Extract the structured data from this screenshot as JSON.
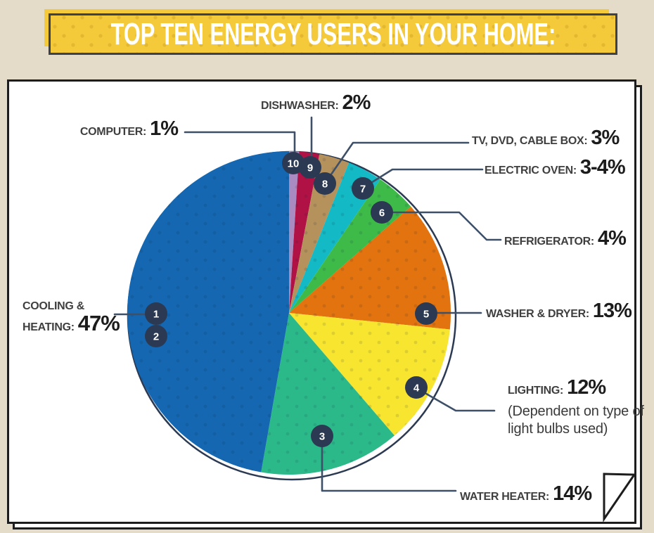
{
  "title": "TOP TEN ENERGY USERS IN YOUR HOME:",
  "chart_data": {
    "type": "pie",
    "title": "TOP TEN ENERGY USERS IN YOUR HOME:",
    "value_unit": "%",
    "start_angle_deg_from_top": 0,
    "direction": "clockwise",
    "segments": [
      {
        "key": "computer",
        "label": "COMPUTER",
        "value": 1,
        "value_text": "1%",
        "color": "#a98bc1",
        "markers": [
          10
        ]
      },
      {
        "key": "dishwasher",
        "label": "DISHWASHER",
        "value": 2,
        "value_text": "2%",
        "color": "#b11245",
        "markers": [
          9
        ]
      },
      {
        "key": "tv",
        "label": "TV, DVD, CABLE BOX",
        "value": 3,
        "value_text": "3%",
        "color": "#b5915c",
        "markers": [
          8
        ]
      },
      {
        "key": "oven",
        "label": "ELECTRIC OVEN",
        "value": 3.5,
        "value_text": "3-4%",
        "color": "#13b9c5",
        "markers": [
          7
        ]
      },
      {
        "key": "fridge",
        "label": "REFRIGERATOR",
        "value": 4,
        "value_text": "4%",
        "color": "#3eba49",
        "markers": [
          6
        ]
      },
      {
        "key": "washer",
        "label": "WASHER & DRYER",
        "value": 13,
        "value_text": "13%",
        "color": "#e2730f",
        "markers": [
          5
        ]
      },
      {
        "key": "lighting",
        "label": "LIGHTING",
        "value": 12,
        "value_text": "12%",
        "color": "#f8e52f",
        "markers": [
          4
        ],
        "note": "(Dependent on type of light bulbs used)"
      },
      {
        "key": "water",
        "label": "WATER HEATER",
        "value": 14,
        "value_text": "14%",
        "color": "#2bb98a",
        "markers": [
          3
        ]
      },
      {
        "key": "cooling",
        "label": "COOLING & HEATING",
        "value": 47,
        "value_text": "47%",
        "color": "#1467b0",
        "markers": [
          1,
          2
        ]
      }
    ]
  },
  "callouts": {
    "computer": {
      "name": "COMPUTER:",
      "value": "1%"
    },
    "dishwasher": {
      "name": "DISHWASHER:",
      "value": "2%"
    },
    "tv": {
      "name": "TV, DVD, CABLE BOX:",
      "value": "3%"
    },
    "oven": {
      "name": "ELECTRIC OVEN:",
      "value": "3-4%"
    },
    "fridge": {
      "name": "REFRIGERATOR:",
      "value": "4%"
    },
    "washer": {
      "name": "WASHER & DRYER:",
      "value": "13%"
    },
    "lighting": {
      "name": "LIGHTING:",
      "value": "12%",
      "note_line1": "(Dependent on type of",
      "note_line2": "light bulbs used)"
    },
    "water": {
      "name": "WATER HEATER:",
      "value": "14%"
    },
    "cooling": {
      "name_line1": "COOLING &",
      "name_line2": "HEATING:",
      "value": "47%"
    }
  },
  "colors": {
    "background": "#e4dcc8",
    "banner_fill": "#f5ca3a",
    "banner_border": "#3a4150",
    "card_border": "#1d1d1d",
    "marker_fill": "#2b3a52",
    "leader_line": "#3e5068",
    "pie_ring": "#2b3a52"
  }
}
